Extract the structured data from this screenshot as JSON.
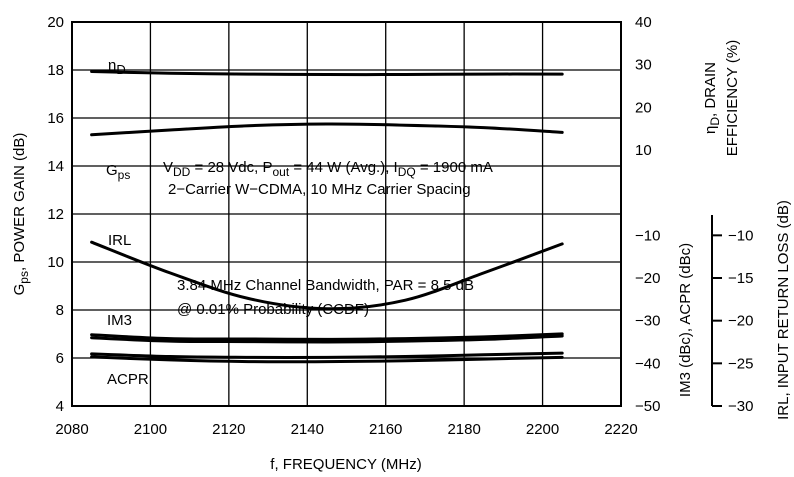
{
  "chart_data": {
    "type": "line",
    "x": [
      2085,
      2105,
      2125,
      2145,
      2165,
      2185,
      2205
    ],
    "xlim": [
      2080,
      2220
    ],
    "x_ticks": [
      2080,
      2100,
      2120,
      2140,
      2160,
      2180,
      2200,
      2220
    ],
    "xlabel": "f, FREQUENCY (MHz)",
    "left_axis": {
      "ylim": [
        4,
        20
      ],
      "ticks": [
        4,
        6,
        8,
        10,
        12,
        14,
        16,
        18,
        20
      ]
    },
    "right_axis_1": {
      "ylim": [
        -50,
        40
      ],
      "ticks": [
        -50,
        -40,
        -30,
        -20,
        -10,
        10,
        20,
        30,
        40
      ],
      "label_top": "ηD, DRAIN EFFICIENCY (%)",
      "label_bottom": "IM3 (dBc), ACPR (dBc)"
    },
    "right_axis_2": {
      "ticks": [
        -10,
        -15,
        -20,
        -25,
        -30
      ],
      "label": "IRL, INPUT RETURN LOSS (dB)"
    },
    "series": [
      {
        "name": "ηD",
        "axis": "right_axis_1",
        "values": [
          28.4,
          28.0,
          27.8,
          27.7,
          27.7,
          27.8,
          27.8
        ]
      },
      {
        "name": "Gps",
        "axis": "left_axis",
        "values": [
          15.3,
          15.5,
          15.68,
          15.75,
          15.7,
          15.6,
          15.4
        ]
      },
      {
        "name": "IRL",
        "axis": "right_axis_2",
        "values": [
          -10.8,
          -14.4,
          -17.4,
          -18.6,
          -17.6,
          -14.4,
          -11.0
        ]
      },
      {
        "name": "IM3",
        "axis": "right_axis_1",
        "values": [
          -33.3,
          -34.2,
          -34.3,
          -34.4,
          -34.2,
          -33.8,
          -33.1
        ]
      },
      {
        "name": "",
        "axis": "right_axis_1",
        "values": [
          -34.0,
          -34.8,
          -34.9,
          -35.0,
          -34.8,
          -34.4,
          -33.6
        ]
      },
      {
        "name": "",
        "axis": "right_axis_1",
        "values": [
          -37.8,
          -38.4,
          -38.6,
          -38.6,
          -38.4,
          -38.0,
          -37.6
        ]
      },
      {
        "name": "ACPR",
        "axis": "right_axis_1",
        "values": [
          -38.5,
          -39.2,
          -39.6,
          -39.6,
          -39.4,
          -39.0,
          -38.6
        ]
      }
    ],
    "annotations": [
      "VDD = 28 Vdc, Pout = 44 W (Avg.), IDQ = 1900 mA",
      "2−Carrier W−CDMA, 10 MHz Carrier Spacing",
      "3.84 MHz Channel Bandwidth, PAR = 8.5 dB",
      "@ 0.01% Probability (CCDF)"
    ]
  }
}
